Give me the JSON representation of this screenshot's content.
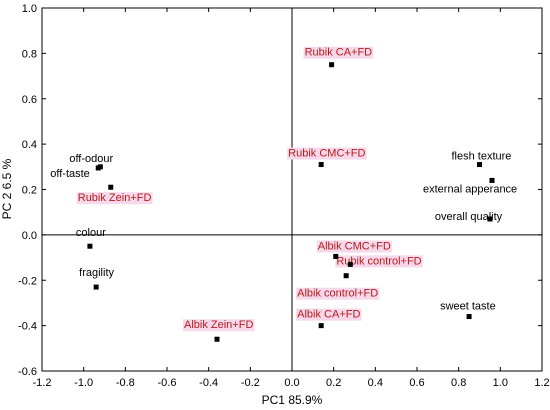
{
  "chart_data": {
    "type": "scatter",
    "title": "",
    "xlabel": "PC1 85.9%",
    "ylabel": "PC 2 6.5 %",
    "xlim": [
      -1.2,
      1.2
    ],
    "ylim": [
      -0.6,
      1.0
    ],
    "xticks": [
      "-1.2",
      "-1.0",
      "-0.8",
      "-0.6",
      "-0.4",
      "-0.2",
      "0.0",
      "0.2",
      "0.4",
      "0.6",
      "0.8",
      "1.0",
      "1.2"
    ],
    "yticks": [
      "-0.6",
      "-0.4",
      "-0.2",
      "0.0",
      "0.2",
      "0.4",
      "0.6",
      "0.8",
      "1.0"
    ],
    "grid": false,
    "reference_lines": {
      "x": 0,
      "y": 0
    },
    "colors": {
      "sample_label": "#b71c1c",
      "sample_highlight": "#f6d8ea",
      "attribute_label": "#000000",
      "marker": "#000000"
    },
    "points": [
      {
        "label": "off-odour",
        "x": -0.92,
        "y": 0.3,
        "kind": "attribute"
      },
      {
        "label": "off-taste",
        "x": -0.93,
        "y": 0.295,
        "kind": "attribute"
      },
      {
        "label": "Rubik Zein+FD",
        "x": -0.87,
        "y": 0.21,
        "kind": "sample"
      },
      {
        "label": "colour",
        "x": -0.97,
        "y": -0.05,
        "kind": "attribute"
      },
      {
        "label": "fragility",
        "x": -0.94,
        "y": -0.23,
        "kind": "attribute"
      },
      {
        "label": "Albik Zein+FD",
        "x": -0.36,
        "y": -0.46,
        "kind": "sample"
      },
      {
        "label": "Rubik CA+FD",
        "x": 0.19,
        "y": 0.75,
        "kind": "sample"
      },
      {
        "label": "Rubik CMC+FD",
        "x": 0.14,
        "y": 0.31,
        "kind": "sample"
      },
      {
        "label": "Albik CMC+FD",
        "x": 0.21,
        "y": -0.095,
        "kind": "sample"
      },
      {
        "label": "Rubik control+FD",
        "x": 0.28,
        "y": -0.13,
        "kind": "sample"
      },
      {
        "label": "Albik control+FD",
        "x": 0.26,
        "y": -0.18,
        "kind": "sample"
      },
      {
        "label": "Albik CA+FD",
        "x": 0.14,
        "y": -0.4,
        "kind": "sample"
      },
      {
        "label": "flesh texture",
        "x": 0.9,
        "y": 0.31,
        "kind": "attribute"
      },
      {
        "label": "external apperance",
        "x": 0.96,
        "y": 0.24,
        "kind": "attribute"
      },
      {
        "label": "overall quality",
        "x": 0.95,
        "y": 0.07,
        "kind": "attribute"
      },
      {
        "label": "sweet taste",
        "x": 0.85,
        "y": -0.36,
        "kind": "attribute"
      }
    ]
  }
}
